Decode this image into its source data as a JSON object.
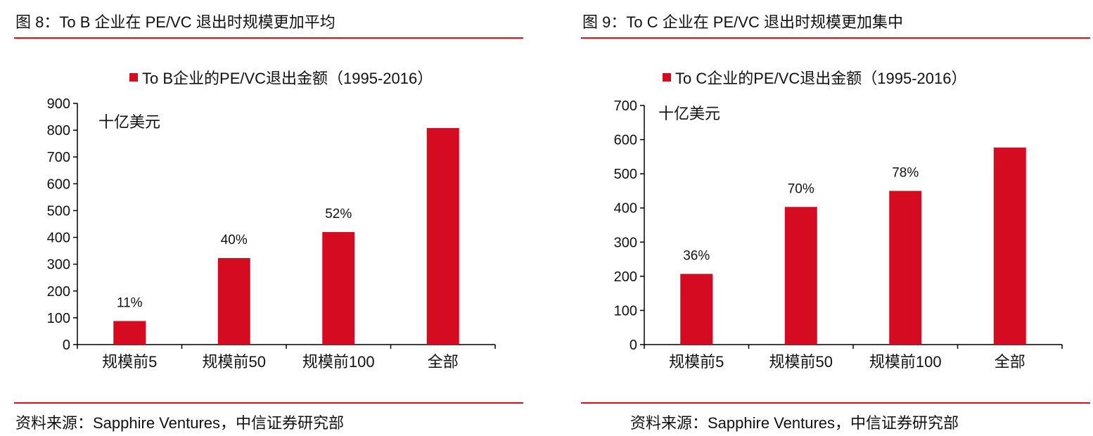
{
  "colors": {
    "accent_rule": "#d7101e",
    "bar": "#d50b21",
    "text": "#111111"
  },
  "chart_data": [
    {
      "type": "bar",
      "figure_title": "图 8：To B 企业在 PE/VC 退出时规模更加平均",
      "series": [
        {
          "name": "To B企业的PE/VC退出金额（1995-2016）",
          "values": [
            88,
            323,
            420,
            808
          ]
        }
      ],
      "categories": [
        "规模前5",
        "规模前50",
        "规模前100",
        "全部"
      ],
      "data_labels": [
        "11%",
        "40%",
        "52%",
        ""
      ],
      "unit_label": "十亿美元",
      "ylim": [
        0,
        900
      ],
      "yticks": [
        0,
        100,
        200,
        300,
        400,
        500,
        600,
        700,
        800,
        900
      ],
      "grid": false,
      "legend_position": "top-center",
      "source": "资料来源：Sapphire Ventures，中信证券研究部"
    },
    {
      "type": "bar",
      "figure_title": "图 9：To C 企业在 PE/VC 退出时规模更加集中",
      "series": [
        {
          "name": "To C企业的PE/VC退出金额（1995-2016）",
          "values": [
            207,
            403,
            450,
            577
          ]
        }
      ],
      "categories": [
        "规模前5",
        "规模前50",
        "规模前100",
        "全部"
      ],
      "data_labels": [
        "36%",
        "70%",
        "78%",
        ""
      ],
      "unit_label": "十亿美元",
      "ylim": [
        0,
        700
      ],
      "yticks": [
        0,
        100,
        200,
        300,
        400,
        500,
        600,
        700
      ],
      "grid": false,
      "legend_position": "top-center",
      "source": "资料来源：Sapphire Ventures，中信证券研究部"
    }
  ]
}
